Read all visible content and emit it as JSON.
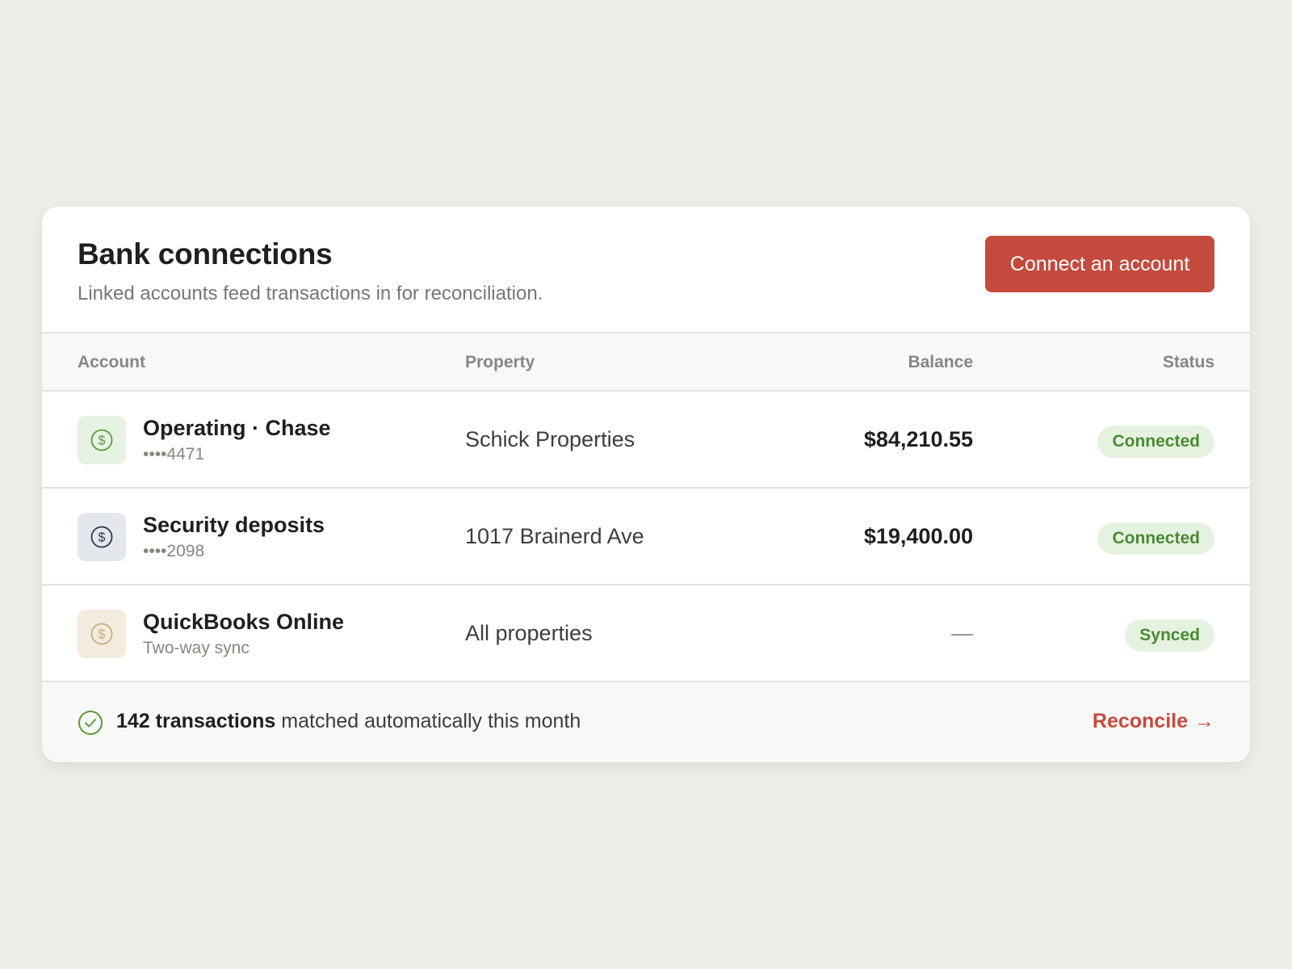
{
  "header": {
    "title": "Bank connections",
    "subtitle": "Linked accounts feed transactions in for reconciliation.",
    "connect_label": "Connect an account"
  },
  "table": {
    "columns": {
      "account": "Account",
      "property": "Property",
      "balance": "Balance",
      "status": "Status"
    },
    "rows": [
      {
        "name": "Operating · Chase",
        "sub": "••••4471",
        "property": "Schick Properties",
        "balance": "$84,210.55",
        "status": "Connected",
        "icon": "dollar-circle-icon",
        "icon_color": "#5a9a3e",
        "icon_bg": "#e8f2e2"
      },
      {
        "name": "Security deposits",
        "sub": "••••2098",
        "property": "1017 Brainerd Ave",
        "balance": "$19,400.00",
        "status": "Connected",
        "icon": "dollar-circle-icon",
        "icon_color": "#2e3a48",
        "icon_bg": "#e4e8ec"
      },
      {
        "name": "QuickBooks Online",
        "sub": "Two-way sync",
        "property": "All properties",
        "balance": "—",
        "status": "Synced",
        "icon": "dollar-circle-icon",
        "icon_color": "#c9ab80",
        "icon_bg": "#f4ebdf"
      }
    ]
  },
  "footer": {
    "count_text": "142 transactions",
    "summary_rest": " matched automatically this month",
    "reconcile_label": "Reconcile",
    "arrow": "→"
  },
  "colors": {
    "accent": "#c44a3d",
    "success": "#4a8a34",
    "success_bg": "#e6f2e0",
    "page_bg": "#eeede8"
  }
}
